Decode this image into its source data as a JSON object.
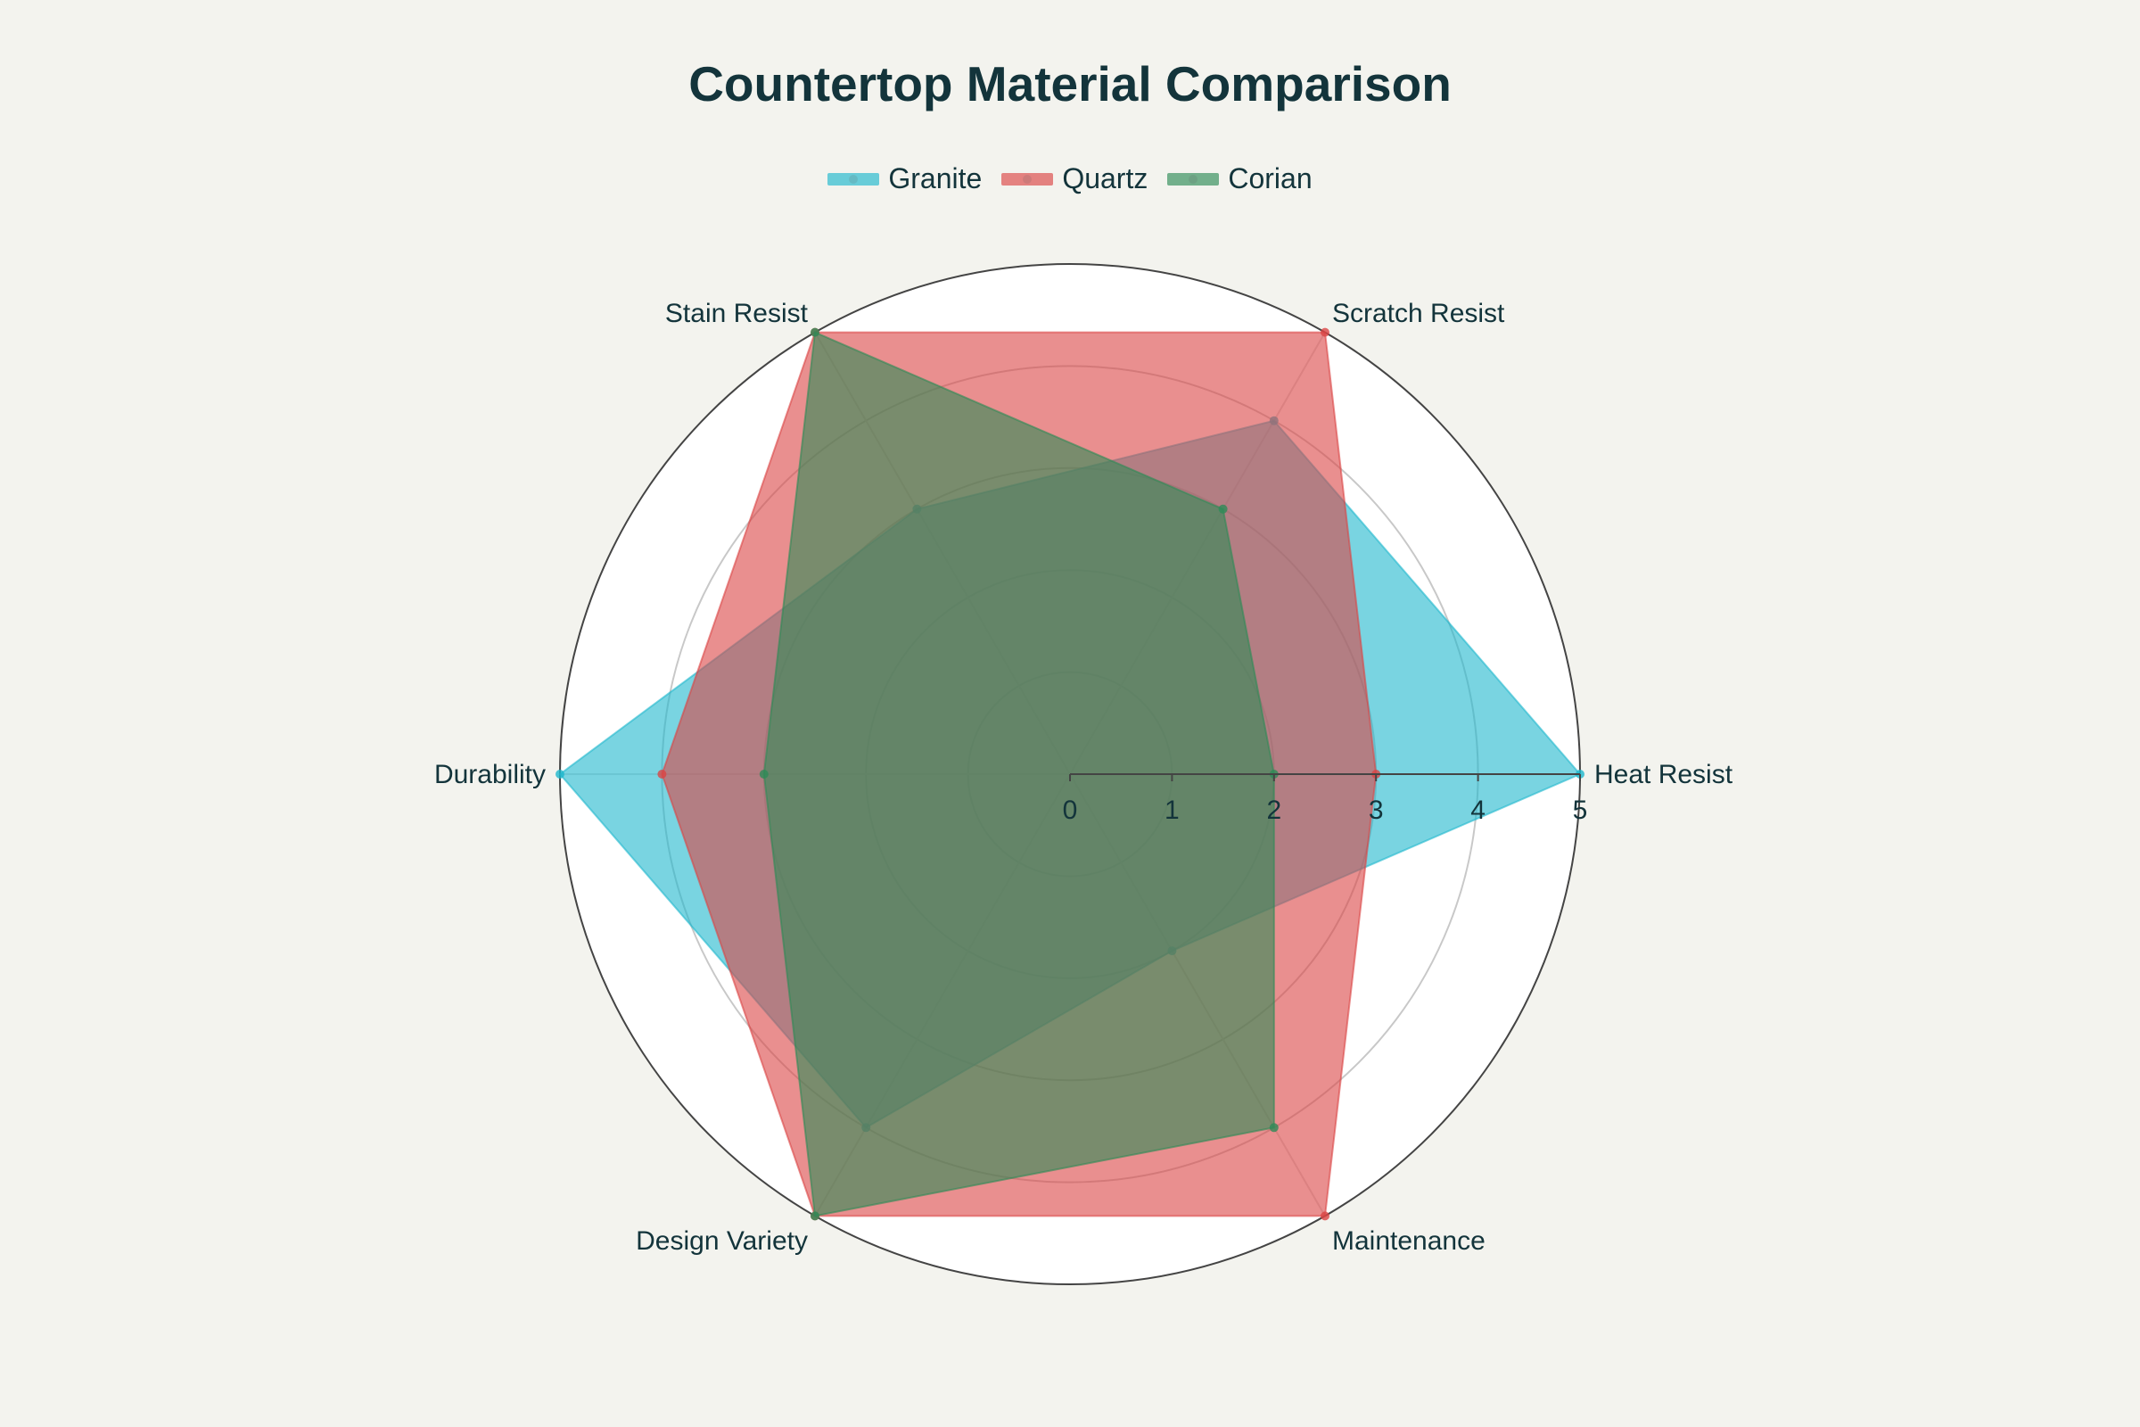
{
  "chart_data": {
    "type": "radar",
    "title": "Countertop Material Comparison",
    "categories": [
      "Heat Resist",
      "Scratch Resist",
      "Stain Resist",
      "Durability",
      "Design Variety",
      "Maintenance"
    ],
    "series": [
      {
        "name": "Granite",
        "values": [
          5,
          4,
          3,
          5,
          4,
          2
        ],
        "color": "#1fb8cd"
      },
      {
        "name": "Quartz",
        "values": [
          3,
          5,
          5,
          4,
          5,
          5
        ],
        "color": "#db4545"
      },
      {
        "name": "Corian",
        "values": [
          2,
          3,
          5,
          3,
          5,
          4
        ],
        "color": "#2e8b57"
      }
    ],
    "radial_range": [
      0,
      5
    ],
    "radial_ticks": [
      "0",
      "1",
      "2",
      "3",
      "4",
      "5"
    ],
    "grid": true,
    "legend_position": "top-center"
  }
}
